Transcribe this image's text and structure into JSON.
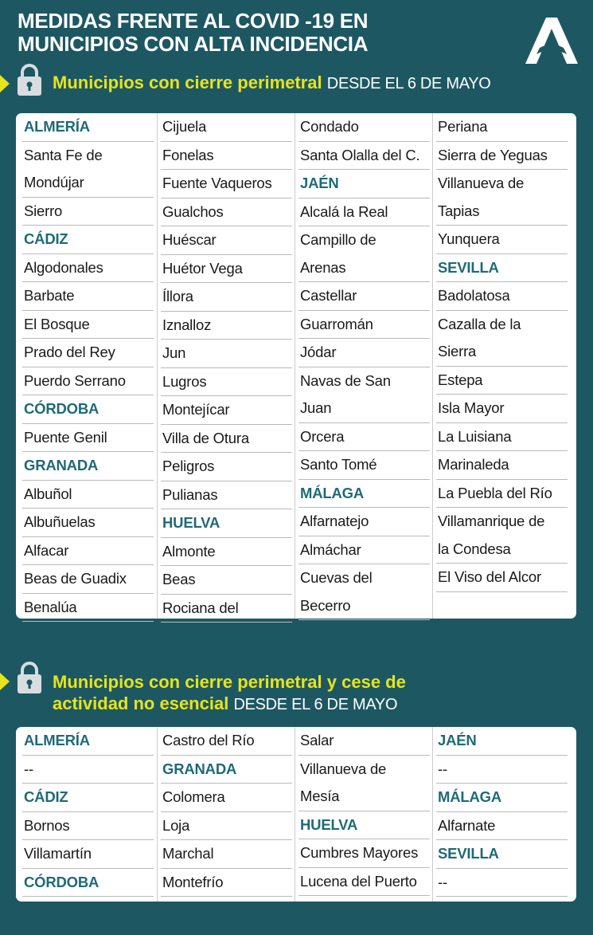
{
  "header": {
    "title_line1": "MEDIDAS FRENTE AL COVID -19 EN",
    "title_line2": "MUNICIPIOS CON ALTA INCIDENCIA",
    "logo": "Junta de Andalucía A logo"
  },
  "colors": {
    "background": "#1d5862",
    "accent_yellow": "#e6e41c",
    "province_heading": "#1f6a76"
  },
  "section1": {
    "icon": "lock-icon",
    "title_bold": "Municipios con cierre perimetral",
    "title_date": "DESDE EL 6 DE MAYO",
    "columns": [
      [
        {
          "h": true,
          "lines": [
            "ALMERÍA"
          ]
        },
        {
          "lines": [
            "Santa Fe de",
            "Mondújar"
          ]
        },
        {
          "lines": [
            "Sierro"
          ]
        },
        {
          "h": true,
          "lines": [
            "CÁDIZ"
          ]
        },
        {
          "lines": [
            "Algodonales"
          ]
        },
        {
          "lines": [
            "Barbate"
          ]
        },
        {
          "lines": [
            "El Bosque"
          ]
        },
        {
          "lines": [
            "Prado del Rey"
          ]
        },
        {
          "lines": [
            "Puerdo Serrano"
          ]
        },
        {
          "h": true,
          "lines": [
            "CÓRDOBA"
          ]
        },
        {
          "lines": [
            "Puente Genil"
          ]
        },
        {
          "h": true,
          "lines": [
            "GRANADA"
          ]
        },
        {
          "lines": [
            "Albuñol"
          ]
        },
        {
          "lines": [
            "Albuñuelas"
          ]
        },
        {
          "lines": [
            "Alfacar"
          ]
        },
        {
          "lines": [
            "Beas de Guadix"
          ]
        },
        {
          "lines": [
            "Benalúa"
          ]
        }
      ],
      [
        {
          "lines": [
            "Cijuela"
          ]
        },
        {
          "lines": [
            "Fonelas"
          ]
        },
        {
          "lines": [
            "Fuente Vaqueros"
          ]
        },
        {
          "lines": [
            "Gualchos"
          ]
        },
        {
          "lines": [
            "Huéscar"
          ]
        },
        {
          "lines": [
            "Huétor Vega"
          ]
        },
        {
          "lines": [
            "Íllora"
          ]
        },
        {
          "lines": [
            "Iznalloz"
          ]
        },
        {
          "lines": [
            "Jun"
          ]
        },
        {
          "lines": [
            "Lugros"
          ]
        },
        {
          "lines": [
            "Montejícar"
          ]
        },
        {
          "lines": [
            "Villa de Otura"
          ]
        },
        {
          "lines": [
            "Peligros"
          ]
        },
        {
          "lines": [
            "Pulianas"
          ]
        },
        {
          "h": true,
          "lines": [
            "HUELVA"
          ]
        },
        {
          "lines": [
            "Almonte"
          ]
        },
        {
          "lines": [
            "Beas"
          ]
        },
        {
          "lines": [
            "Rociana del"
          ]
        }
      ],
      [
        {
          "lines": [
            "Condado"
          ]
        },
        {
          "lines": [
            "Santa Olalla del C."
          ]
        },
        {
          "h": true,
          "lines": [
            "JAÉN"
          ]
        },
        {
          "lines": [
            "Alcalá la Real"
          ]
        },
        {
          "lines": [
            "Campillo de",
            "Arenas"
          ]
        },
        {
          "lines": [
            "Castellar"
          ]
        },
        {
          "lines": [
            "Guarromán"
          ]
        },
        {
          "lines": [
            "Jódar"
          ]
        },
        {
          "lines": [
            "Navas de San",
            "Juan"
          ]
        },
        {
          "lines": [
            "Orcera"
          ]
        },
        {
          "lines": [
            "Santo Tomé"
          ]
        },
        {
          "h": true,
          "lines": [
            "MÁLAGA"
          ]
        },
        {
          "lines": [
            "Alfarnatejo"
          ]
        },
        {
          "lines": [
            "Almáchar"
          ]
        },
        {
          "lines": [
            "Cuevas del",
            "Becerro"
          ]
        }
      ],
      [
        {
          "lines": [
            "Periana"
          ]
        },
        {
          "lines": [
            "Sierra de Yeguas"
          ]
        },
        {
          "lines": [
            "Villanueva de",
            "Tapias"
          ]
        },
        {
          "lines": [
            "Yunquera"
          ]
        },
        {
          "h": true,
          "lines": [
            "SEVILLA"
          ]
        },
        {
          "lines": [
            "Badolatosa"
          ]
        },
        {
          "lines": [
            "Cazalla de la",
            "Sierra"
          ]
        },
        {
          "lines": [
            "Estepa"
          ]
        },
        {
          "lines": [
            "Isla Mayor"
          ]
        },
        {
          "lines": [
            "La Luisiana"
          ]
        },
        {
          "lines": [
            "Marinaleda"
          ]
        },
        {
          "lines": [
            "La Puebla del Río"
          ]
        },
        {
          "lines": [
            "Villamanrique de",
            "la Condesa"
          ]
        },
        {
          "lines": [
            "El Viso del Alcor"
          ]
        }
      ]
    ]
  },
  "section2": {
    "icon": "lock-icon",
    "title_bold_line1": "Municipios con cierre perimetral y cese de",
    "title_bold_line2": "actividad no esencial",
    "title_date": "DESDE EL 6 DE MAYO",
    "columns": [
      [
        {
          "h": true,
          "lines": [
            "ALMERÍA"
          ]
        },
        {
          "lines": [
            "--"
          ]
        },
        {
          "h": true,
          "lines": [
            "CÁDIZ"
          ]
        },
        {
          "lines": [
            "Bornos"
          ]
        },
        {
          "lines": [
            "Villamartín"
          ]
        },
        {
          "h": true,
          "lines": [
            "CÓRDOBA"
          ]
        }
      ],
      [
        {
          "lines": [
            "Castro del Río"
          ]
        },
        {
          "h": true,
          "lines": [
            "GRANADA"
          ]
        },
        {
          "lines": [
            "Colomera"
          ]
        },
        {
          "lines": [
            "Loja"
          ]
        },
        {
          "lines": [
            "Marchal"
          ]
        },
        {
          "lines": [
            "Montefrío"
          ]
        }
      ],
      [
        {
          "lines": [
            "Salar"
          ]
        },
        {
          "lines": [
            "Villanueva de",
            "Mesía"
          ]
        },
        {
          "h": true,
          "lines": [
            "HUELVA"
          ]
        },
        {
          "lines": [
            "Cumbres Mayores"
          ]
        },
        {
          "lines": [
            "Lucena del Puerto"
          ]
        }
      ],
      [
        {
          "h": true,
          "lines": [
            "JAÉN"
          ]
        },
        {
          "lines": [
            "--"
          ]
        },
        {
          "h": true,
          "lines": [
            "MÁLAGA"
          ]
        },
        {
          "lines": [
            "Alfarnate"
          ]
        },
        {
          "h": true,
          "lines": [
            "SEVILLA"
          ]
        },
        {
          "lines": [
            "--"
          ]
        }
      ]
    ]
  }
}
